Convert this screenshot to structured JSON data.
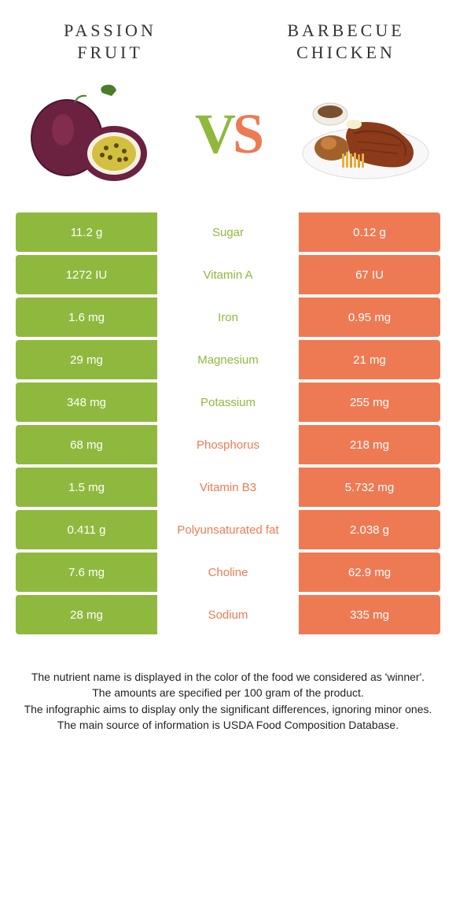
{
  "colors": {
    "left": "#8fb93e",
    "right": "#ee7a54",
    "vs_v": "#8fb93e",
    "vs_s": "#ee7a54"
  },
  "titles": {
    "left_line1": "PASSION",
    "left_line2": "FRUIT",
    "right_line1": "BARBECUE",
    "right_line2": "CHICKEN"
  },
  "vs": {
    "v": "V",
    "s": "S"
  },
  "rows": [
    {
      "left": "11.2 g",
      "label": "Sugar",
      "right": "0.12 g",
      "winner": "left"
    },
    {
      "left": "1272 IU",
      "label": "Vitamin A",
      "right": "67 IU",
      "winner": "left"
    },
    {
      "left": "1.6 mg",
      "label": "Iron",
      "right": "0.95 mg",
      "winner": "left"
    },
    {
      "left": "29 mg",
      "label": "Magnesium",
      "right": "21 mg",
      "winner": "left"
    },
    {
      "left": "348 mg",
      "label": "Potassium",
      "right": "255 mg",
      "winner": "left"
    },
    {
      "left": "68 mg",
      "label": "Phosphorus",
      "right": "218 mg",
      "winner": "right"
    },
    {
      "left": "1.5 mg",
      "label": "Vitamin B3",
      "right": "5.732 mg",
      "winner": "right"
    },
    {
      "left": "0.411 g",
      "label": "Polyunsaturated fat",
      "right": "2.038 g",
      "winner": "right"
    },
    {
      "left": "7.6 mg",
      "label": "Choline",
      "right": "62.9 mg",
      "winner": "right"
    },
    {
      "left": "28 mg",
      "label": "Sodium",
      "right": "335 mg",
      "winner": "right"
    }
  ],
  "footnotes": [
    "The nutrient name is displayed in the color of the food we considered as 'winner'.",
    "The amounts are specified per 100 gram of the product.",
    "The infographic aims to display only the significant differences, ignoring minor ones.",
    "The main source of information is USDA Food Composition Database."
  ]
}
